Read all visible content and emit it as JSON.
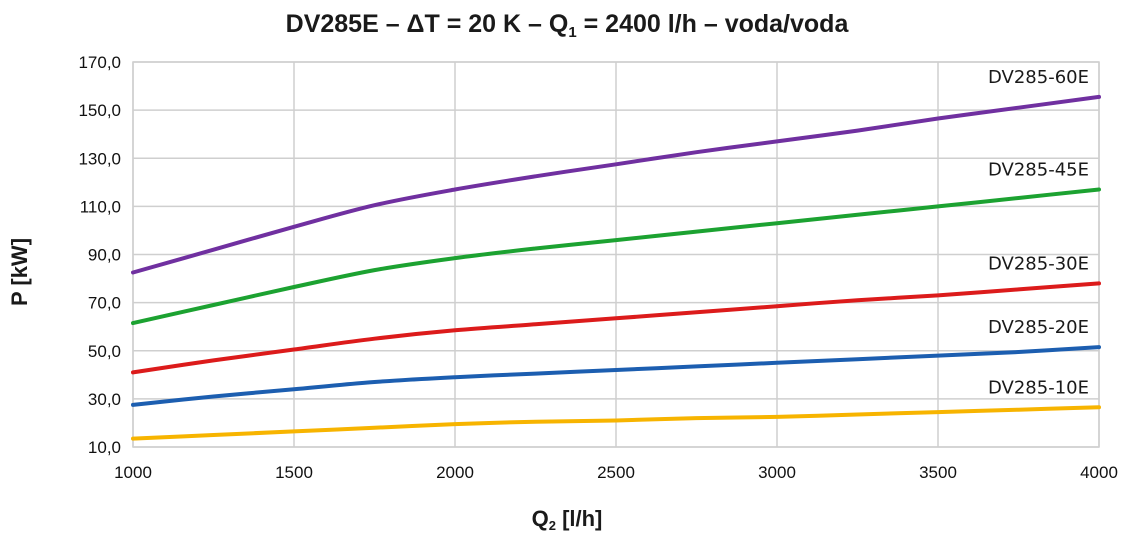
{
  "chart_data": {
    "type": "line",
    "title": {
      "before_1": "DV285E – ΔT = 20 K – Q",
      "sub_1": "1",
      "after_1": " = 2400 l/h – voda/voda"
    },
    "xlabel": {
      "main": "Q",
      "sub": "2",
      "unit": " [l/h]"
    },
    "ylabel": "P [kW]",
    "xlim": [
      1000,
      4000
    ],
    "ylim": [
      10,
      170
    ],
    "xticks": [
      1000,
      1500,
      2000,
      2500,
      3000,
      3500,
      4000
    ],
    "xtick_labels": [
      "1000",
      "1500",
      "2000",
      "2500",
      "3000",
      "3500",
      "4000"
    ],
    "yticks": [
      10,
      30,
      50,
      70,
      90,
      110,
      130,
      150,
      170
    ],
    "ytick_labels": [
      "10,0",
      "30,0",
      "50,0",
      "70,0",
      "90,0",
      "110,0",
      "130,0",
      "150,0",
      "170,0"
    ],
    "grid": true,
    "x": [
      1000,
      1250,
      1500,
      1750,
      2000,
      2250,
      2500,
      2750,
      3000,
      3250,
      3500,
      3750,
      4000
    ],
    "series": [
      {
        "name": "DV285-60E",
        "color": "#7030a0",
        "values": [
          82.5,
          92.0,
          101.5,
          110.5,
          117.0,
          122.5,
          127.5,
          132.5,
          137.0,
          141.5,
          146.5,
          151.0,
          155.5
        ]
      },
      {
        "name": "DV285-45E",
        "color": "#1ca231",
        "values": [
          61.5,
          69.0,
          76.5,
          83.5,
          88.5,
          92.5,
          96.0,
          99.5,
          103.0,
          106.5,
          110.0,
          113.5,
          117.0
        ]
      },
      {
        "name": "DV285-30E",
        "color": "#dc1b1b",
        "values": [
          41.0,
          46.0,
          50.5,
          55.0,
          58.5,
          61.0,
          63.5,
          66.0,
          68.5,
          71.0,
          73.0,
          75.5,
          78.0
        ]
      },
      {
        "name": "DV285-20E",
        "color": "#1c5eb0",
        "values": [
          27.5,
          31.0,
          34.0,
          37.0,
          39.0,
          40.5,
          42.0,
          43.5,
          45.0,
          46.5,
          48.0,
          49.5,
          51.5
        ]
      },
      {
        "name": "DV285-10E",
        "color": "#f7b400",
        "values": [
          13.5,
          15.0,
          16.5,
          18.0,
          19.5,
          20.5,
          21.0,
          22.0,
          22.5,
          23.5,
          24.5,
          25.5,
          26.5
        ]
      }
    ]
  }
}
